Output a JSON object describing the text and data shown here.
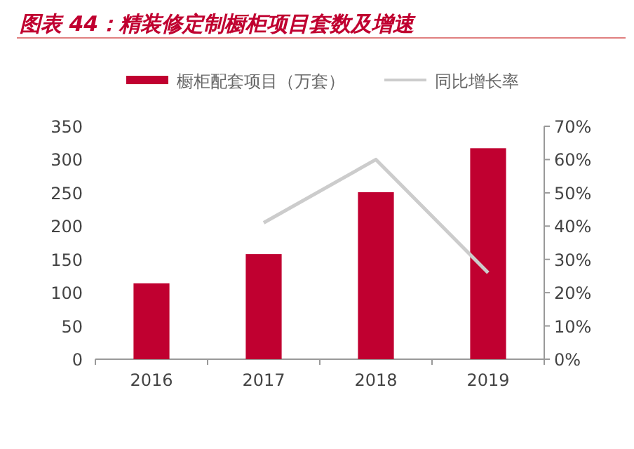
{
  "chart_data": {
    "type": "bar",
    "title": "图表 44：精装修定制橱柜项目套数及增速",
    "categories": [
      "2016",
      "2017",
      "2018",
      "2019"
    ],
    "series": [
      {
        "name": "橱柜配套项目（万套）",
        "color": "#c00030",
        "values": [
          114,
          158,
          251,
          317
        ]
      },
      {
        "name": "同比增长率",
        "type": "line",
        "axis": "y2",
        "color": "#cccccc",
        "values": [
          null,
          41,
          60,
          26
        ]
      }
    ],
    "ylim": [
      0,
      350
    ],
    "yticks": [
      0,
      50,
      100,
      150,
      200,
      250,
      300,
      350
    ],
    "y2lim": [
      0,
      70
    ],
    "y2ticks": [
      {
        "value": 0,
        "label": "0%"
      },
      {
        "value": 10,
        "label": "10%"
      },
      {
        "value": 20,
        "label": "20%"
      },
      {
        "value": 30,
        "label": "30%"
      },
      {
        "value": 40,
        "label": "40%"
      },
      {
        "value": 50,
        "label": "50%"
      },
      {
        "value": 60,
        "label": "60%"
      },
      {
        "value": 70,
        "label": "70%"
      }
    ],
    "legend": "top",
    "grid": false
  }
}
